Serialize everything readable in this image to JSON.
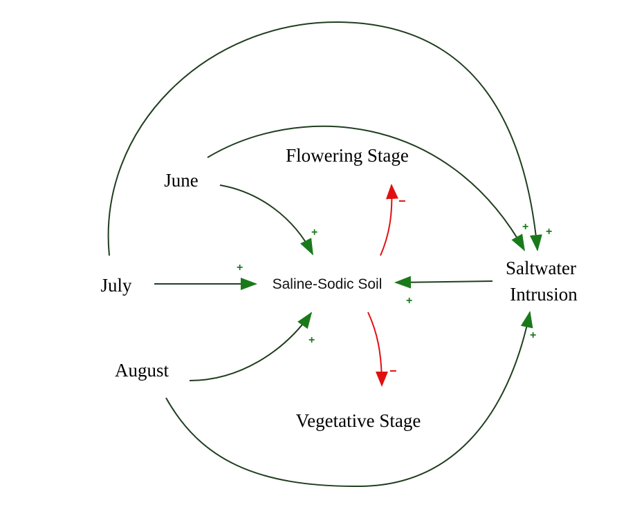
{
  "nodes": {
    "flowering": "Flowering Stage",
    "june": "June",
    "july": "July",
    "soil": "Saline-Sodic Soil",
    "saltwater_line1": "Saltwater",
    "saltwater_line2": "Intrusion",
    "august": "August",
    "vegetative": "Vegetative Stage"
  },
  "links": [
    {
      "from": "June",
      "to": "Saline-Sodic Soil",
      "polarity": "+"
    },
    {
      "from": "July",
      "to": "Saline-Sodic Soil",
      "polarity": "+"
    },
    {
      "from": "August",
      "to": "Saline-Sodic Soil",
      "polarity": "+"
    },
    {
      "from": "Saltwater Intrusion",
      "to": "Saline-Sodic Soil",
      "polarity": "+"
    },
    {
      "from": "June",
      "to": "Saltwater Intrusion",
      "polarity": "+"
    },
    {
      "from": "July",
      "to": "Saltwater Intrusion",
      "polarity": "+"
    },
    {
      "from": "August",
      "to": "Saltwater Intrusion",
      "polarity": "+"
    },
    {
      "from": "Saline-Sodic Soil",
      "to": "Flowering Stage",
      "polarity": "−"
    },
    {
      "from": "Saline-Sodic Soil",
      "to": "Vegetative Stage",
      "polarity": "−"
    }
  ],
  "colors": {
    "positive": "#1a7a1a",
    "negative": "#e01010",
    "line": "#1f3d1f"
  }
}
